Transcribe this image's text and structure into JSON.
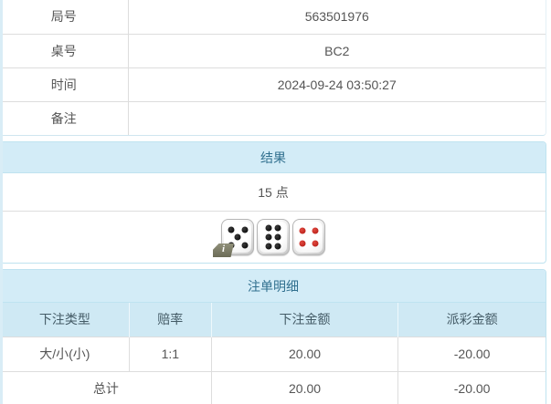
{
  "info_table": {
    "rows": [
      {
        "label": "局号",
        "value": "563501976"
      },
      {
        "label": "桌号",
        "value": "BC2"
      },
      {
        "label": "时间",
        "value": "2024-09-24 03:50:27"
      },
      {
        "label": "备注",
        "value": ""
      }
    ]
  },
  "result_panel": {
    "title": "结果",
    "points": "15 点",
    "dice": [
      {
        "value": 5,
        "color": "black"
      },
      {
        "value": 6,
        "color": "black"
      },
      {
        "value": 4,
        "color": "red"
      }
    ],
    "info_icon_label": "i"
  },
  "bets_panel": {
    "title": "注单明细",
    "columns": [
      "下注类型",
      "赔率",
      "下注金额",
      "派彩金额"
    ],
    "rows": [
      {
        "bet_type": "大/小(小)",
        "odds": "1:1",
        "bet_amount": "20.00",
        "payout": "-20.00"
      }
    ],
    "total_row": {
      "label": "总计",
      "bet_amount": "20.00",
      "payout": "-20.00"
    }
  },
  "colors": {
    "panel_border": "#bfe3f0",
    "heading_bg": "#d3ecf7",
    "heading_text": "#31708f",
    "table_header_bg": "#cfe9f4",
    "row_border": "#dddddd",
    "negative_text": "#e8393c"
  }
}
